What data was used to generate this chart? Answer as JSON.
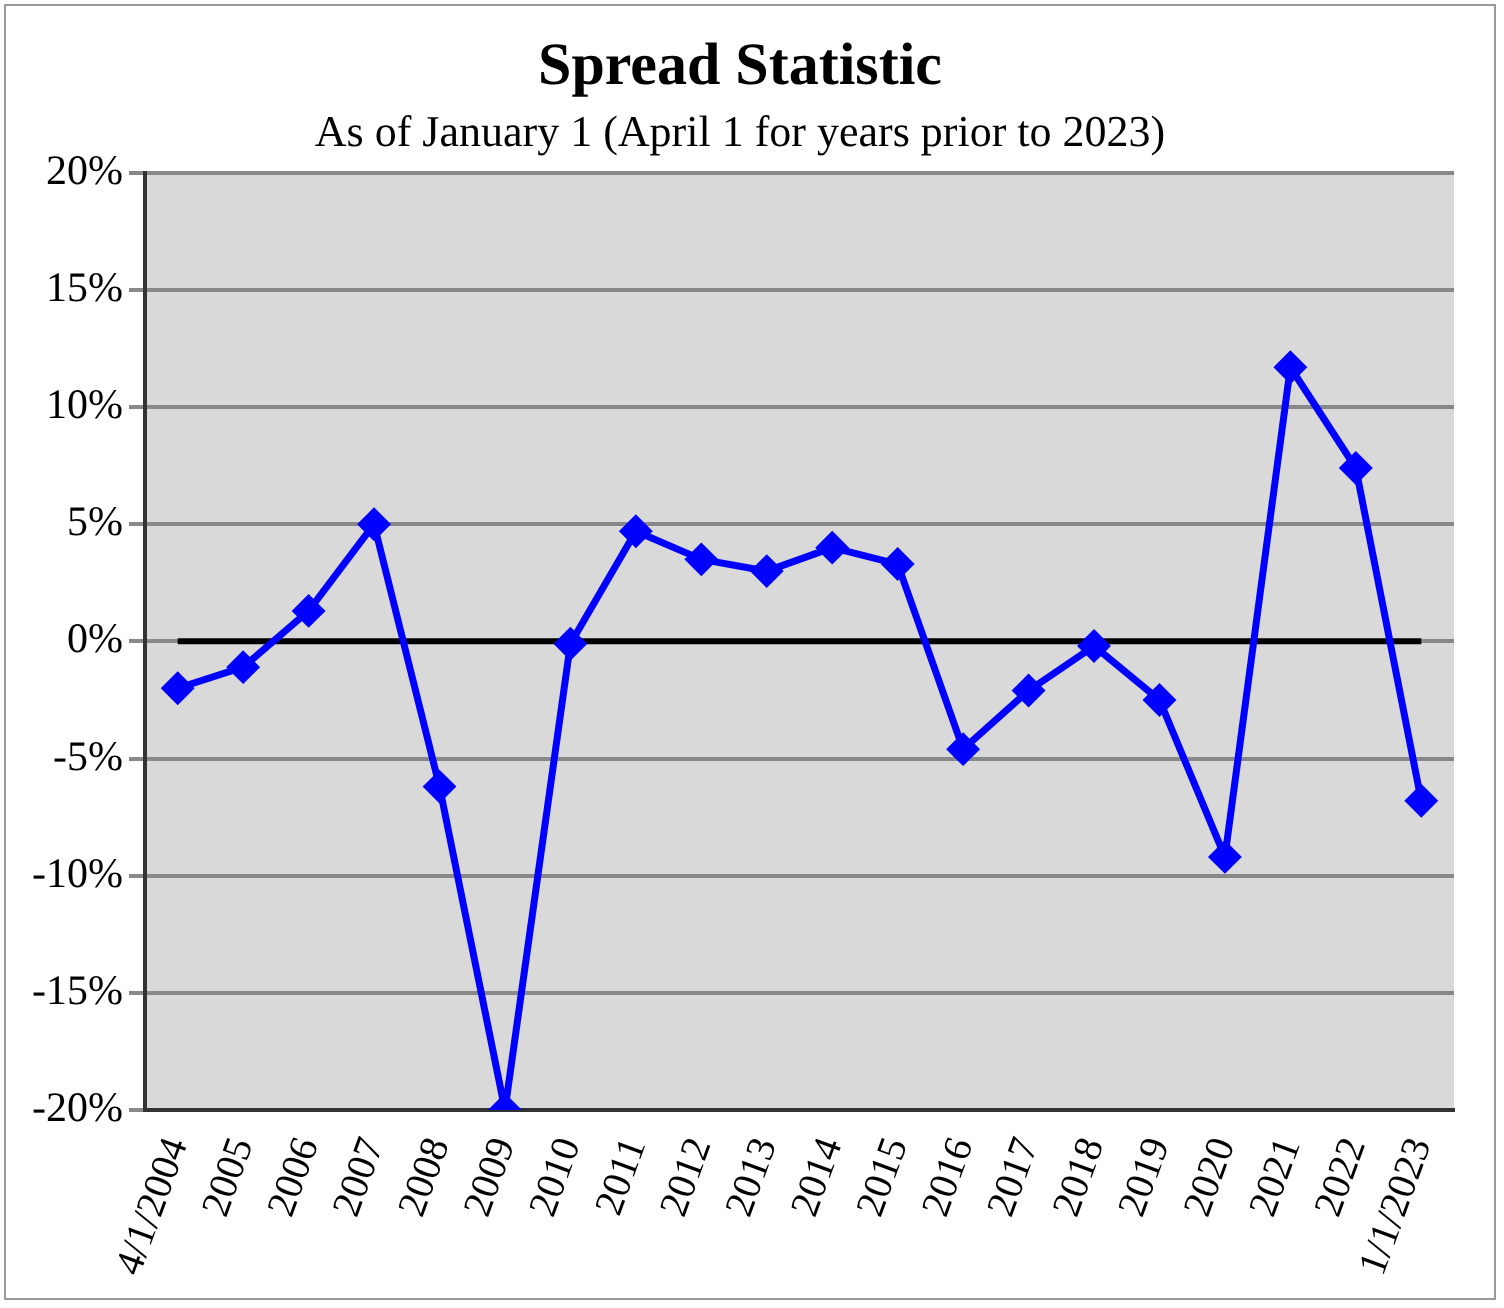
{
  "chart_data": {
    "type": "line",
    "title": "Spread Statistic",
    "subtitle": "As of January 1 (April 1 for years prior to 2023)",
    "categories": [
      "4/1/2004",
      "2005",
      "2006",
      "2007",
      "2008",
      "2009",
      "2010",
      "2011",
      "2012",
      "2013",
      "2014",
      "2015",
      "2016",
      "2017",
      "2018",
      "2019",
      "2020",
      "2021",
      "2022",
      "1/1/2023"
    ],
    "series": [
      {
        "color": "#0000ff",
        "values": [
          -2.0,
          -1.1,
          1.3,
          5.0,
          -6.2,
          -20,
          -0.1,
          4.7,
          3.5,
          3.0,
          4.0,
          3.3,
          -4.6,
          -2.1,
          -0.2,
          -2.5,
          -9.2,
          11.7,
          7.4,
          -6.8
        ]
      }
    ],
    "ylim": [
      -20,
      20
    ],
    "yticks": [
      {
        "value": -20,
        "label": "-20%"
      },
      {
        "value": -15,
        "label": "-15%"
      },
      {
        "value": -10,
        "label": "-10%"
      },
      {
        "value": -5,
        "label": "-5%"
      },
      {
        "value": 0,
        "label": "0%"
      },
      {
        "value": 5,
        "label": "5%"
      },
      {
        "value": 10,
        "label": "10%"
      },
      {
        "value": 15,
        "label": "15%"
      },
      {
        "value": 20,
        "label": "20%"
      }
    ],
    "ref_lines": [
      {
        "axis": "y",
        "value": 0,
        "color": "#000000"
      }
    ],
    "grid": "y",
    "legend": false,
    "marker": "diamond",
    "line_style": "solid"
  }
}
